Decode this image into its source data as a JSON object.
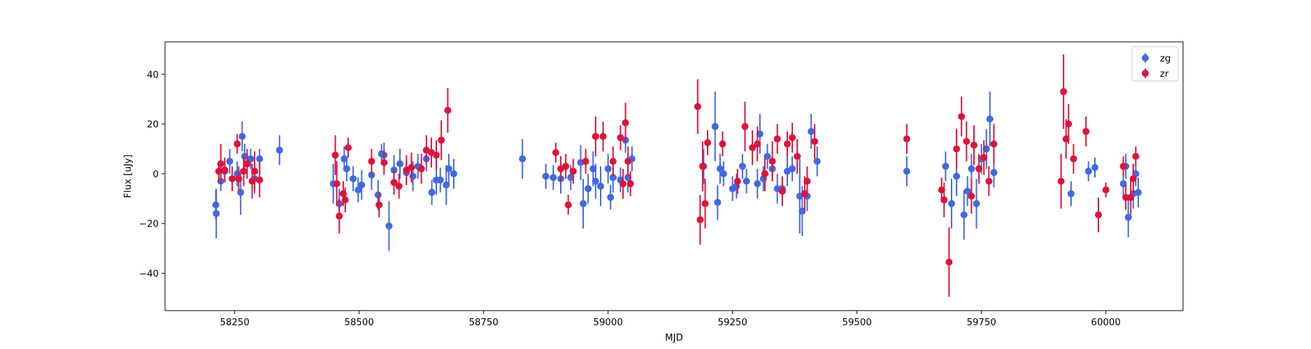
{
  "chart_data": {
    "type": "scatter",
    "title": "",
    "xlabel": "MJD",
    "ylabel": "Flux [uJy]",
    "xlim": [
      58110,
      60155
    ],
    "ylim": [
      -55,
      53
    ],
    "xticks": [
      58250,
      58500,
      58750,
      59000,
      59250,
      59500,
      59750,
      60000
    ],
    "yticks": [
      -40,
      -20,
      0,
      20,
      40
    ],
    "legend": {
      "position": "top-right"
    },
    "series": [
      {
        "name": "zg",
        "color": "#4169e1",
        "points": [
          [
            58212,
            -12.5,
            6
          ],
          [
            58213,
            -16,
            10
          ],
          [
            58222,
            -3,
            4
          ],
          [
            58230,
            1,
            4
          ],
          [
            58240,
            5,
            5
          ],
          [
            58255,
            0,
            5
          ],
          [
            58262,
            -7.5,
            9
          ],
          [
            58265,
            15,
            6
          ],
          [
            58270,
            7,
            5
          ],
          [
            58282,
            6,
            4
          ],
          [
            58290,
            -2,
            6
          ],
          [
            58300,
            6,
            4
          ],
          [
            58340,
            9.5,
            6
          ],
          [
            58448,
            -4,
            8
          ],
          [
            58460,
            -12,
            6
          ],
          [
            58470,
            6,
            5
          ],
          [
            58475,
            2,
            5
          ],
          [
            58488,
            -2,
            5
          ],
          [
            58498,
            -6.5,
            5
          ],
          [
            58505,
            -4.5,
            6
          ],
          [
            58525,
            -0.5,
            6
          ],
          [
            58538,
            -8.5,
            6
          ],
          [
            58545,
            8,
            4
          ],
          [
            58550,
            7.5,
            5
          ],
          [
            58560,
            -21,
            10
          ],
          [
            58570,
            1.5,
            6
          ],
          [
            58582,
            4,
            6
          ],
          [
            58595,
            0.5,
            5
          ],
          [
            58608,
            -1,
            6
          ],
          [
            58618,
            3,
            5
          ],
          [
            58635,
            6,
            5
          ],
          [
            58646,
            -7.5,
            5
          ],
          [
            58655,
            -2.5,
            6
          ],
          [
            58663,
            -2.5,
            5
          ],
          [
            58675,
            -4.5,
            8
          ],
          [
            58680,
            2,
            6
          ],
          [
            58690,
            0,
            6
          ],
          [
            58828,
            6,
            8
          ],
          [
            58875,
            -1,
            5
          ],
          [
            58890,
            -1.5,
            5
          ],
          [
            58905,
            -2,
            6
          ],
          [
            58925,
            -1.5,
            5
          ],
          [
            58945,
            4.5,
            7
          ],
          [
            58950,
            -12,
            10
          ],
          [
            58960,
            -6,
            6
          ],
          [
            58970,
            2,
            7
          ],
          [
            58975,
            -3,
            7
          ],
          [
            58985,
            -5,
            8
          ],
          [
            59000,
            2,
            6
          ],
          [
            59005,
            -9.5,
            5
          ],
          [
            59010,
            -1.5,
            6
          ],
          [
            59025,
            -2.5,
            5
          ],
          [
            59035,
            13.5,
            5
          ],
          [
            59040,
            -1.5,
            6
          ],
          [
            59048,
            6,
            5
          ],
          [
            59192,
            3,
            7
          ],
          [
            59215,
            19,
            14
          ],
          [
            59220,
            -11.5,
            7
          ],
          [
            59225,
            2,
            6
          ],
          [
            59232,
            0,
            5
          ],
          [
            59250,
            -6,
            5
          ],
          [
            59258,
            -5,
            5
          ],
          [
            59270,
            3,
            5
          ],
          [
            59278,
            -3,
            5
          ],
          [
            59300,
            -4,
            6
          ],
          [
            59305,
            16,
            8
          ],
          [
            59312,
            -2,
            5
          ],
          [
            59320,
            7,
            5
          ],
          [
            59330,
            2,
            5
          ],
          [
            59340,
            -6,
            6
          ],
          [
            59350,
            -6,
            5
          ],
          [
            59360,
            1,
            6
          ],
          [
            59370,
            2,
            5
          ],
          [
            59385,
            -9,
            15
          ],
          [
            59390,
            -15,
            10
          ],
          [
            59400,
            -9,
            6
          ],
          [
            59408,
            17,
            7
          ],
          [
            59420,
            5,
            6
          ],
          [
            59600,
            1,
            6
          ],
          [
            59678,
            3,
            6
          ],
          [
            59690,
            -12,
            10
          ],
          [
            59700,
            -1,
            8
          ],
          [
            59715,
            -16.5,
            10
          ],
          [
            59722,
            -7,
            6
          ],
          [
            59730,
            2,
            6
          ],
          [
            59740,
            -12,
            10
          ],
          [
            59750,
            6,
            6
          ],
          [
            59760,
            10,
            8
          ],
          [
            59767,
            22,
            11
          ],
          [
            59775,
            0.5,
            6
          ],
          [
            59930,
            -8,
            5
          ],
          [
            59965,
            1,
            4
          ],
          [
            59978,
            2.5,
            4
          ],
          [
            60035,
            -4,
            6
          ],
          [
            60040,
            3,
            5
          ],
          [
            60045,
            -17.5,
            8
          ],
          [
            60055,
            -8,
            6
          ],
          [
            60060,
            0,
            5
          ],
          [
            60065,
            -7.5,
            6
          ]
        ]
      },
      {
        "name": "zr",
        "color": "#dc143c",
        "points": [
          [
            58218,
            1,
            4
          ],
          [
            58222,
            4,
            8
          ],
          [
            58230,
            1.5,
            5
          ],
          [
            58245,
            -2,
            5
          ],
          [
            58255,
            12,
            4
          ],
          [
            58258,
            -2,
            5
          ],
          [
            58268,
            1,
            6
          ],
          [
            58275,
            4,
            6
          ],
          [
            58285,
            -3,
            7
          ],
          [
            58290,
            1,
            8
          ],
          [
            58300,
            -2.5,
            7
          ],
          [
            58452,
            7.5,
            8
          ],
          [
            58455,
            -4,
            9
          ],
          [
            58460,
            -17,
            7
          ],
          [
            58468,
            -8,
            5
          ],
          [
            58472,
            -10.5,
            5
          ],
          [
            58478,
            10.5,
            4
          ],
          [
            58525,
            5,
            5
          ],
          [
            58540,
            -12.5,
            5
          ],
          [
            58550,
            4.5,
            5
          ],
          [
            58570,
            -3.5,
            5
          ],
          [
            58580,
            -5,
            5
          ],
          [
            58595,
            1.5,
            6
          ],
          [
            58605,
            2.5,
            6
          ],
          [
            58625,
            2,
            6
          ],
          [
            58635,
            9.5,
            6
          ],
          [
            58645,
            8.5,
            6
          ],
          [
            58655,
            7.5,
            6
          ],
          [
            58665,
            13.5,
            8
          ],
          [
            58678,
            25.5,
            9
          ],
          [
            58895,
            8.5,
            4
          ],
          [
            58905,
            2,
            5
          ],
          [
            58915,
            3,
            5
          ],
          [
            58920,
            -12.5,
            4
          ],
          [
            58930,
            1,
            5
          ],
          [
            58955,
            5,
            5
          ],
          [
            58975,
            15,
            8
          ],
          [
            58990,
            15,
            6
          ],
          [
            59010,
            5,
            6
          ],
          [
            59025,
            14.5,
            5
          ],
          [
            59030,
            -4,
            6
          ],
          [
            59035,
            20.5,
            8
          ],
          [
            59040,
            5,
            6
          ],
          [
            59045,
            -4,
            5
          ],
          [
            59180,
            27,
            11
          ],
          [
            59185,
            -18.5,
            10
          ],
          [
            59190,
            3,
            10
          ],
          [
            59195,
            -12,
            10
          ],
          [
            59200,
            12.5,
            5
          ],
          [
            59230,
            12,
            5
          ],
          [
            59260,
            -3,
            5
          ],
          [
            59275,
            19,
            10
          ],
          [
            59290,
            10.5,
            7
          ],
          [
            59300,
            12,
            7
          ],
          [
            59315,
            0,
            7
          ],
          [
            59330,
            5,
            8
          ],
          [
            59340,
            14,
            6
          ],
          [
            59350,
            -7,
            6
          ],
          [
            59360,
            12,
            5
          ],
          [
            59370,
            14.5,
            6
          ],
          [
            59380,
            7,
            7
          ],
          [
            59395,
            -8,
            7
          ],
          [
            59400,
            -3,
            6
          ],
          [
            59415,
            13,
            7
          ],
          [
            59600,
            14,
            6
          ],
          [
            59670,
            -6.5,
            5
          ],
          [
            59675,
            -10.5,
            7
          ],
          [
            59685,
            -35.5,
            14
          ],
          [
            59700,
            10,
            8
          ],
          [
            59710,
            23,
            8
          ],
          [
            59720,
            13,
            8
          ],
          [
            59730,
            -9,
            7
          ],
          [
            59735,
            11.5,
            8
          ],
          [
            59745,
            2,
            6
          ],
          [
            59755,
            6.5,
            7
          ],
          [
            59765,
            -3,
            6
          ],
          [
            59775,
            12,
            8
          ],
          [
            59910,
            -3,
            11
          ],
          [
            59915,
            33,
            15
          ],
          [
            59920,
            14,
            8
          ],
          [
            59925,
            20,
            8
          ],
          [
            59935,
            6,
            6
          ],
          [
            59960,
            17,
            6
          ],
          [
            59985,
            -16.5,
            7
          ],
          [
            60000,
            -6.5,
            3
          ],
          [
            60035,
            3,
            4
          ],
          [
            60040,
            -9.5,
            5
          ],
          [
            60050,
            -9.5,
            7
          ],
          [
            60055,
            -2,
            6
          ],
          [
            60060,
            7,
            4
          ]
        ]
      }
    ]
  }
}
